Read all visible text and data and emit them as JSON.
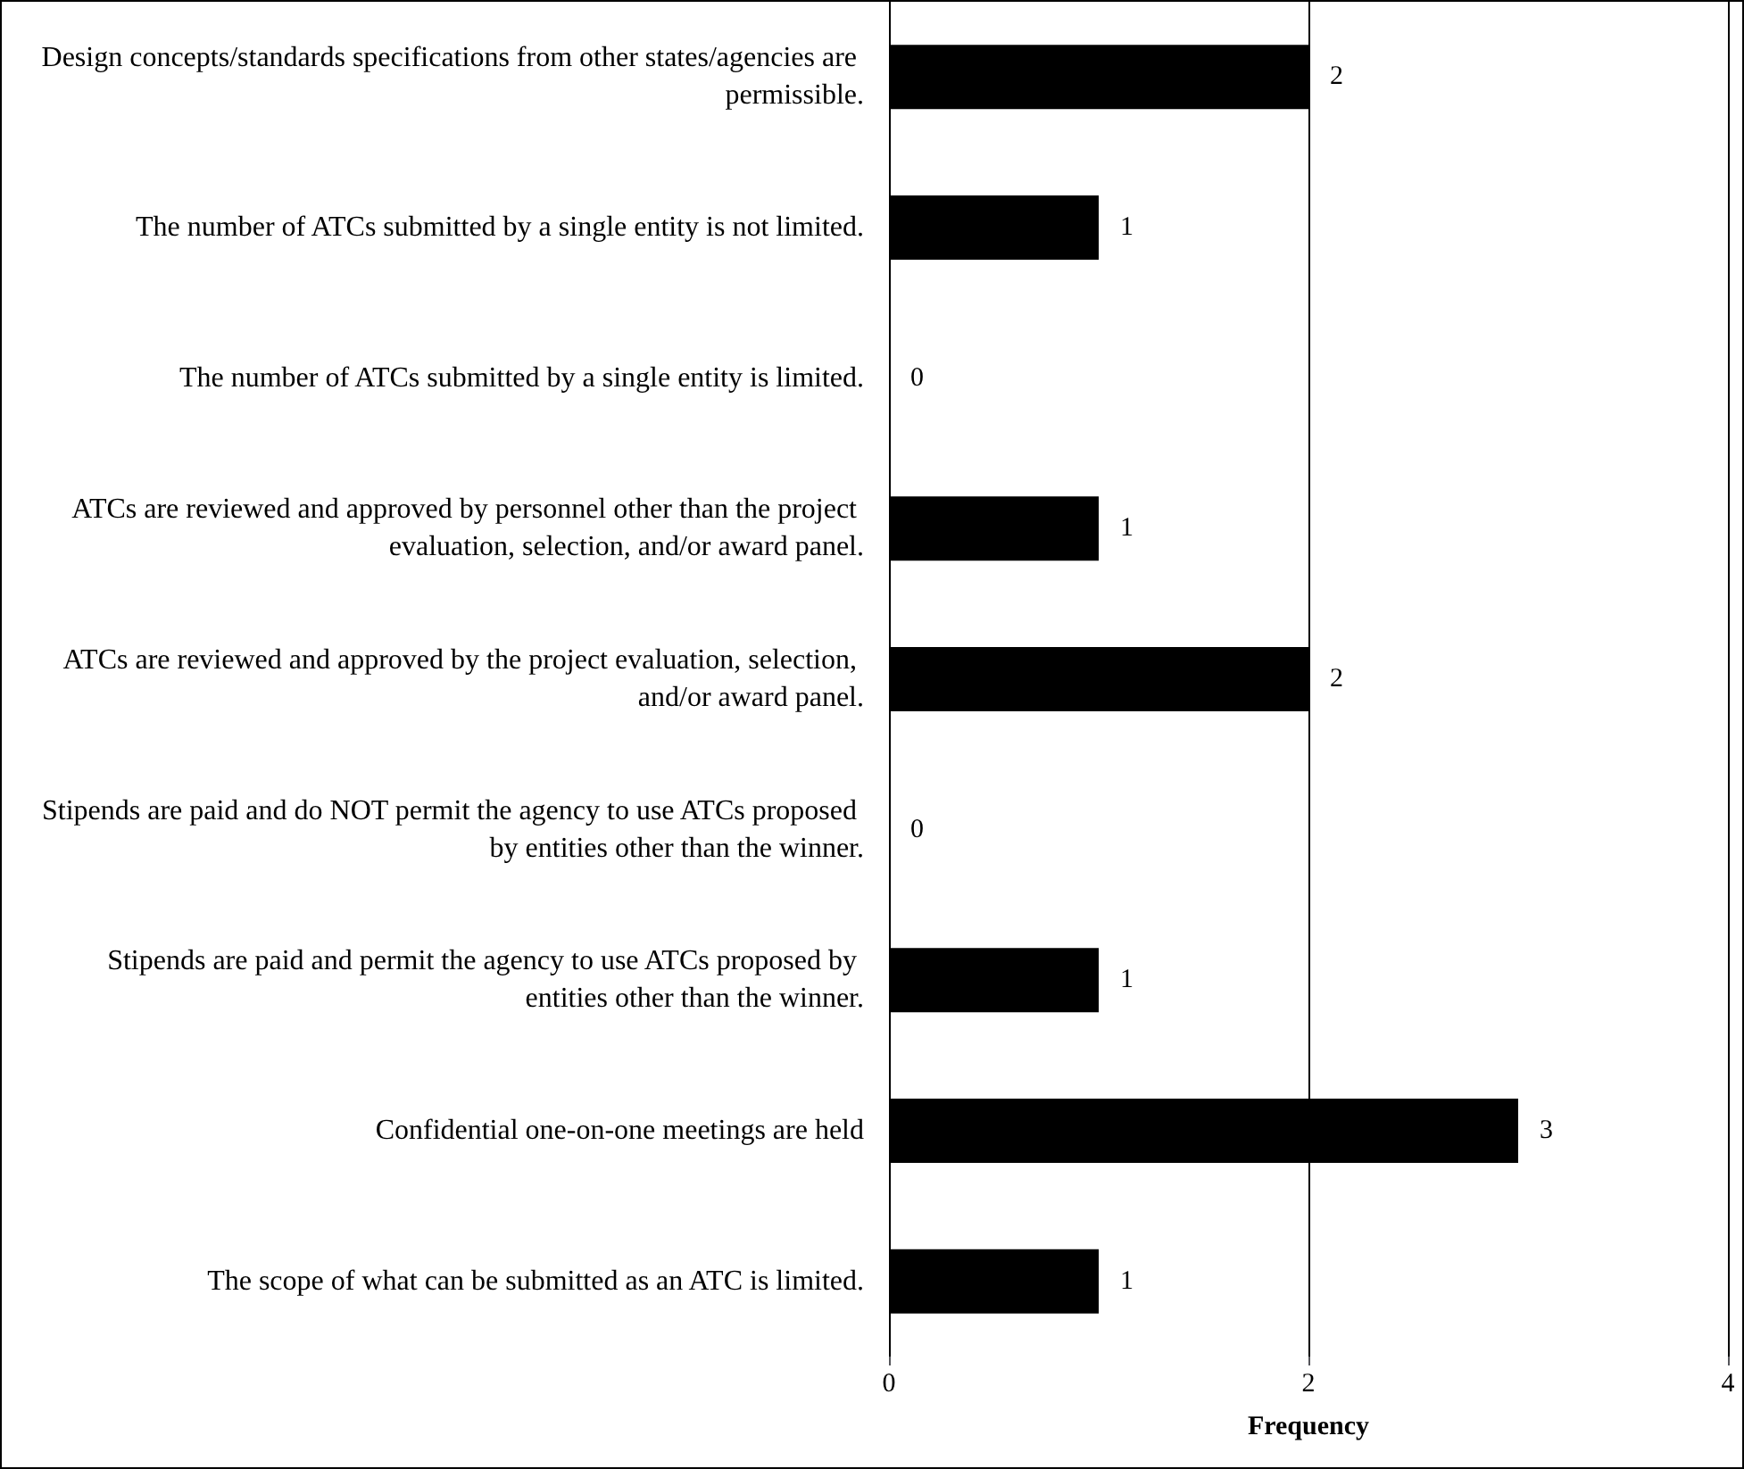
{
  "chart_data": {
    "type": "bar",
    "orientation": "horizontal",
    "xlabel": "Frequency",
    "categories": [
      "Design concepts/standards specifications from other states/agencies are permissible.",
      "The number of ATCs submitted by a single entity is not limited.",
      "The number of ATCs submitted by a single entity is limited.",
      "ATCs are reviewed and approved by personnel other than the project evaluation, selection, and/or award panel.",
      "ATCs are reviewed and approved by the project evaluation, selection, and/or award panel.",
      "Stipends are paid and do NOT permit the agency to use ATCs proposed by entities other than the winner.",
      "Stipends are paid and permit the agency to use ATCs proposed by entities other than the winner.",
      "Confidential one-on-one meetings are held",
      "The scope of what can be submitted as an ATC is limited."
    ],
    "values": [
      2,
      1,
      0,
      1,
      2,
      0,
      1,
      3,
      1
    ],
    "color": "#000000",
    "xlim": [
      0,
      4
    ],
    "xticks": [
      0,
      2,
      4
    ],
    "grid": "x",
    "data_labels": true
  }
}
